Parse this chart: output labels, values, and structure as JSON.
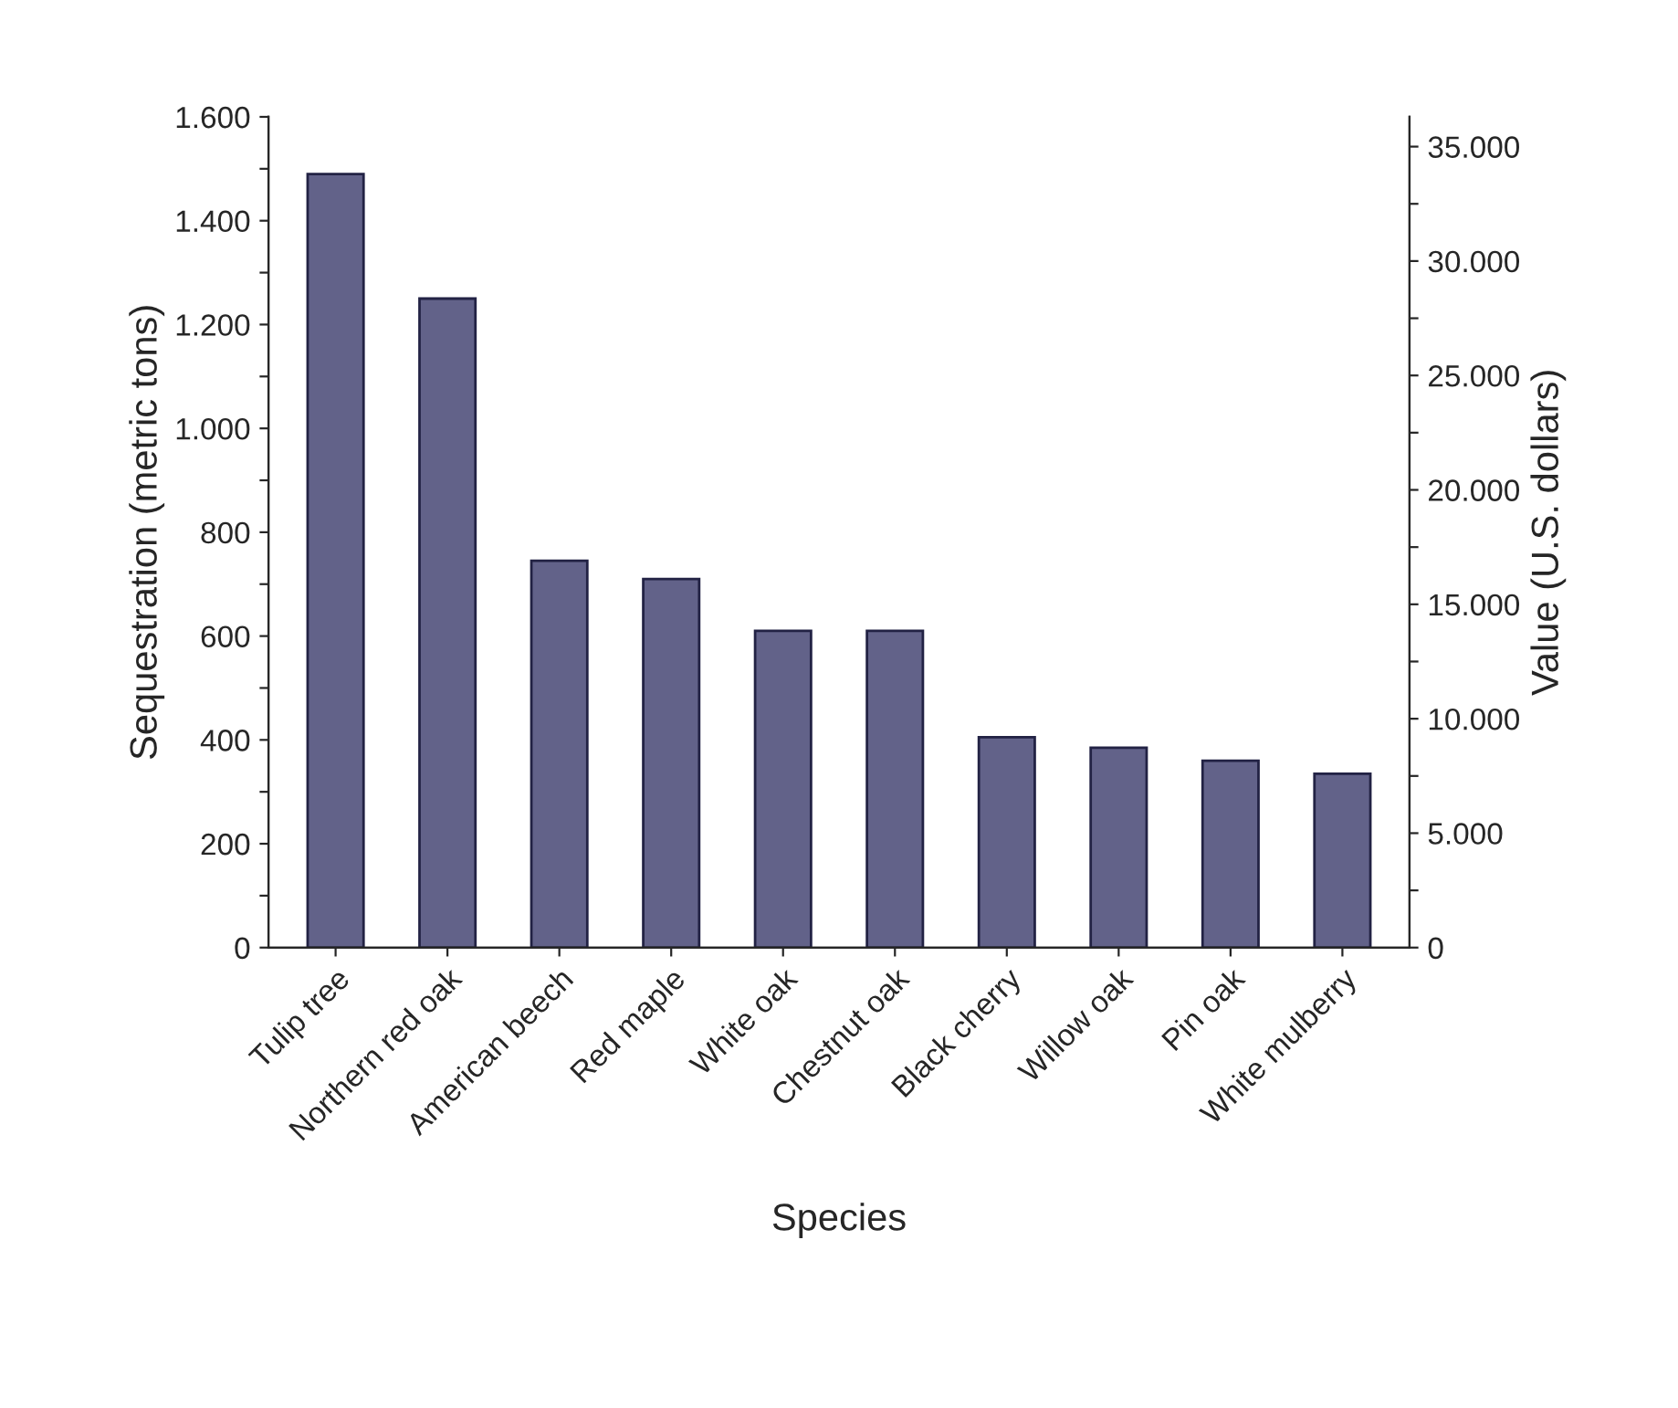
{
  "chart_data": {
    "type": "bar",
    "xlabel": "Species",
    "ylabel": "Sequestration (metric tons)",
    "y2label": "Value (U.S. dollars)",
    "categories": [
      "Tulip tree",
      "Northern red oak",
      "American beech",
      "Red maple",
      "White oak",
      "Chestnut oak",
      "Black cherry",
      "Willow oak",
      "Pin oak",
      "White mulberry"
    ],
    "series": [
      {
        "color": "#5b5b8f",
        "values": [
          1490,
          1250,
          745,
          710,
          610,
          610,
          405,
          385,
          360,
          335
        ]
      }
    ],
    "ylim": [
      0,
      1600
    ],
    "yticks": [
      0,
      {
        "value": 100,
        "label": null
      },
      200,
      {
        "value": 300,
        "label": null
      },
      400,
      {
        "value": 500,
        "label": null
      },
      600,
      {
        "value": 700,
        "label": null
      },
      800,
      {
        "value": 900,
        "label": null
      },
      {
        "value": 1000,
        "label": "1.000"
      },
      {
        "value": 1100,
        "label": null
      },
      {
        "value": 1200,
        "label": "1.200"
      },
      {
        "value": 1300,
        "label": null
      },
      {
        "value": 1400,
        "label": "1.400"
      },
      {
        "value": 1500,
        "label": null
      },
      {
        "value": 1600,
        "label": "1.600"
      }
    ],
    "y2lim": [
      0,
      36300
    ],
    "y2ticks": [
      0,
      {
        "value": 2500,
        "label": null
      },
      {
        "value": 5000,
        "label": "5.000"
      },
      {
        "value": 7500,
        "label": null
      },
      {
        "value": 10000,
        "label": "10.000"
      },
      {
        "value": 12500,
        "label": null
      },
      {
        "value": 15000,
        "label": "15.000"
      },
      {
        "value": 17500,
        "label": null
      },
      {
        "value": 20000,
        "label": "20.000"
      },
      {
        "value": 22500,
        "label": null
      },
      {
        "value": 25000,
        "label": "25.000"
      },
      {
        "value": 27500,
        "label": null
      },
      {
        "value": 30000,
        "label": "30.000"
      },
      {
        "value": 32500,
        "label": null
      },
      {
        "value": 35000,
        "label": "35.000"
      }
    ],
    "grid": false,
    "legend": false
  }
}
